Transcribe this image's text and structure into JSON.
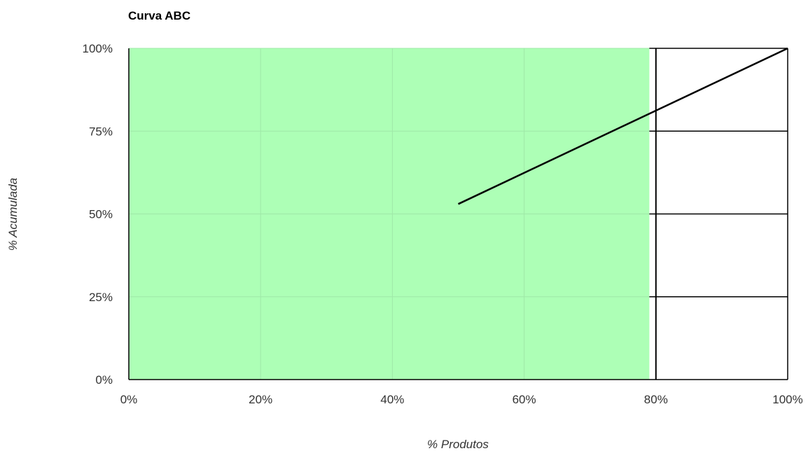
{
  "chart_data": {
    "type": "line",
    "title": "Curva ABC",
    "xlabel": "% Produtos",
    "ylabel": "% Acumulada",
    "xlim": [
      0,
      100
    ],
    "ylim": [
      0,
      100
    ],
    "x_ticks": [
      "0%",
      "20%",
      "40%",
      "60%",
      "80%",
      "100%"
    ],
    "y_ticks": [
      "0%",
      "25%",
      "50%",
      "75%",
      "100%"
    ],
    "grid": true,
    "bands": [
      {
        "x_from": 0,
        "x_to": 79,
        "color": "#adffb6"
      }
    ],
    "series": [
      {
        "x": [
          50,
          100
        ],
        "y": [
          53,
          100
        ],
        "color": "#000000"
      }
    ]
  }
}
